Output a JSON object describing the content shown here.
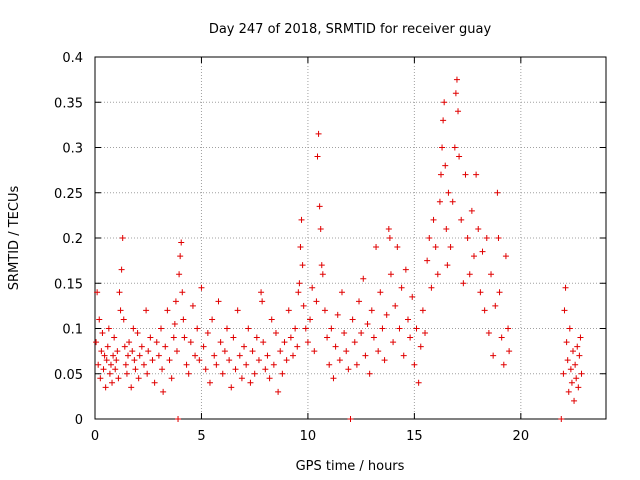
{
  "chart_data": {
    "type": "scatter",
    "title": "Day 247 of 2018, SRMTID for receiver guay",
    "xlabel": "GPS time / hours",
    "ylabel": "SRMTID / TECUs",
    "xlim": [
      0,
      24
    ],
    "ylim": [
      0,
      0.4
    ],
    "x_ticks": [
      0,
      5,
      10,
      15,
      20
    ],
    "x_tick_labels": [
      "0",
      "5",
      "10",
      "15",
      "20"
    ],
    "y_ticks": [
      0,
      0.05,
      0.1,
      0.15,
      0.2,
      0.25,
      0.3,
      0.35,
      0.4
    ],
    "y_tick_labels": [
      "0",
      "0.05",
      "0.1",
      "0.15",
      "0.2",
      "0.25",
      "0.3",
      "0.35",
      "0.4"
    ],
    "grid": true,
    "marker": "+",
    "colors": {
      "points": "#e00000",
      "grid": "#a0a0a0",
      "axes": "#000000"
    },
    "series": [
      {
        "name": "SRMTID",
        "points": [
          [
            0.05,
            0.085
          ],
          [
            0.1,
            0.14
          ],
          [
            0.15,
            0.06
          ],
          [
            0.2,
            0.11
          ],
          [
            0.25,
            0.045
          ],
          [
            0.3,
            0.075
          ],
          [
            0.35,
            0.095
          ],
          [
            0.4,
            0.055
          ],
          [
            0.45,
            0.07
          ],
          [
            0.5,
            0.035
          ],
          [
            0.55,
            0.065
          ],
          [
            0.6,
            0.08
          ],
          [
            0.65,
            0.1
          ],
          [
            0.7,
            0.05
          ],
          [
            0.75,
            0.06
          ],
          [
            0.8,
            0.04
          ],
          [
            0.85,
            0.07
          ],
          [
            0.9,
            0.09
          ],
          [
            0.95,
            0.055
          ],
          [
            1.0,
            0.065
          ],
          [
            1.05,
            0.075
          ],
          [
            1.1,
            0.045
          ],
          [
            1.15,
            0.14
          ],
          [
            1.2,
            0.12
          ],
          [
            1.25,
            0.165
          ],
          [
            1.3,
            0.2
          ],
          [
            1.35,
            0.11
          ],
          [
            1.4,
            0.08
          ],
          [
            1.45,
            0.06
          ],
          [
            1.5,
            0.05
          ],
          [
            1.55,
            0.07
          ],
          [
            1.6,
            0.085
          ],
          [
            1.7,
            0.035
          ],
          [
            1.75,
            0.075
          ],
          [
            1.8,
            0.1
          ],
          [
            1.85,
            0.065
          ],
          [
            1.9,
            0.055
          ],
          [
            2.0,
            0.095
          ],
          [
            2.05,
            0.045
          ],
          [
            2.1,
            0.07
          ],
          [
            2.2,
            0.08
          ],
          [
            2.3,
            0.06
          ],
          [
            2.4,
            0.12
          ],
          [
            2.45,
            0.05
          ],
          [
            2.5,
            0.075
          ],
          [
            2.6,
            0.09
          ],
          [
            2.7,
            0.065
          ],
          [
            2.8,
            0.04
          ],
          [
            2.9,
            0.085
          ],
          [
            3.0,
            0.07
          ],
          [
            3.1,
            0.1
          ],
          [
            3.15,
            0.055
          ],
          [
            3.2,
            0.03
          ],
          [
            3.3,
            0.08
          ],
          [
            3.4,
            0.12
          ],
          [
            3.5,
            0.065
          ],
          [
            3.6,
            0.045
          ],
          [
            3.7,
            0.09
          ],
          [
            3.75,
            0.105
          ],
          [
            3.8,
            0.13
          ],
          [
            3.85,
            0.075
          ],
          [
            3.9,
            0.0
          ],
          [
            3.95,
            0.16
          ],
          [
            4.0,
            0.18
          ],
          [
            4.05,
            0.195
          ],
          [
            4.1,
            0.14
          ],
          [
            4.15,
            0.11
          ],
          [
            4.2,
            0.09
          ],
          [
            4.3,
            0.06
          ],
          [
            4.4,
            0.05
          ],
          [
            4.5,
            0.085
          ],
          [
            4.6,
            0.125
          ],
          [
            4.7,
            0.07
          ],
          [
            4.8,
            0.1
          ],
          [
            4.9,
            0.065
          ],
          [
            5.0,
            0.145
          ],
          [
            5.1,
            0.08
          ],
          [
            5.2,
            0.055
          ],
          [
            5.3,
            0.095
          ],
          [
            5.4,
            0.04
          ],
          [
            5.5,
            0.11
          ],
          [
            5.6,
            0.07
          ],
          [
            5.7,
            0.06
          ],
          [
            5.8,
            0.13
          ],
          [
            5.9,
            0.085
          ],
          [
            6.0,
            0.05
          ],
          [
            6.1,
            0.075
          ],
          [
            6.2,
            0.1
          ],
          [
            6.3,
            0.065
          ],
          [
            6.4,
            0.035
          ],
          [
            6.5,
            0.09
          ],
          [
            6.6,
            0.055
          ],
          [
            6.7,
            0.12
          ],
          [
            6.8,
            0.07
          ],
          [
            6.9,
            0.045
          ],
          [
            7.0,
            0.08
          ],
          [
            7.1,
            0.06
          ],
          [
            7.2,
            0.1
          ],
          [
            7.3,
            0.04
          ],
          [
            7.4,
            0.075
          ],
          [
            7.5,
            0.05
          ],
          [
            7.6,
            0.09
          ],
          [
            7.7,
            0.065
          ],
          [
            7.8,
            0.14
          ],
          [
            7.85,
            0.13
          ],
          [
            7.9,
            0.085
          ],
          [
            8.0,
            0.055
          ],
          [
            8.1,
            0.07
          ],
          [
            8.2,
            0.045
          ],
          [
            8.3,
            0.11
          ],
          [
            8.4,
            0.06
          ],
          [
            8.5,
            0.095
          ],
          [
            8.6,
            0.03
          ],
          [
            8.7,
            0.075
          ],
          [
            8.8,
            0.05
          ],
          [
            8.9,
            0.085
          ],
          [
            9.0,
            0.065
          ],
          [
            9.1,
            0.12
          ],
          [
            9.2,
            0.09
          ],
          [
            9.3,
            0.07
          ],
          [
            9.4,
            0.1
          ],
          [
            9.5,
            0.08
          ],
          [
            9.55,
            0.14
          ],
          [
            9.6,
            0.15
          ],
          [
            9.65,
            0.19
          ],
          [
            9.7,
            0.22
          ],
          [
            9.75,
            0.17
          ],
          [
            9.8,
            0.125
          ],
          [
            9.9,
            0.1
          ],
          [
            10.0,
            0.085
          ],
          [
            10.1,
            0.11
          ],
          [
            10.2,
            0.145
          ],
          [
            10.3,
            0.075
          ],
          [
            10.4,
            0.13
          ],
          [
            10.45,
            0.29
          ],
          [
            10.5,
            0.315
          ],
          [
            10.55,
            0.235
          ],
          [
            10.6,
            0.21
          ],
          [
            10.65,
            0.17
          ],
          [
            10.7,
            0.16
          ],
          [
            10.8,
            0.12
          ],
          [
            10.9,
            0.09
          ],
          [
            11.0,
            0.06
          ],
          [
            11.1,
            0.1
          ],
          [
            11.2,
            0.045
          ],
          [
            11.3,
            0.08
          ],
          [
            11.4,
            0.115
          ],
          [
            11.5,
            0.065
          ],
          [
            11.6,
            0.14
          ],
          [
            11.7,
            0.095
          ],
          [
            11.8,
            0.075
          ],
          [
            11.9,
            0.055
          ],
          [
            12.0,
            0.0
          ],
          [
            12.1,
            0.11
          ],
          [
            12.2,
            0.085
          ],
          [
            12.3,
            0.06
          ],
          [
            12.4,
            0.13
          ],
          [
            12.5,
            0.095
          ],
          [
            12.6,
            0.155
          ],
          [
            12.7,
            0.07
          ],
          [
            12.8,
            0.105
          ],
          [
            12.9,
            0.05
          ],
          [
            13.0,
            0.12
          ],
          [
            13.1,
            0.09
          ],
          [
            13.2,
            0.19
          ],
          [
            13.3,
            0.075
          ],
          [
            13.4,
            0.14
          ],
          [
            13.5,
            0.1
          ],
          [
            13.6,
            0.065
          ],
          [
            13.7,
            0.115
          ],
          [
            13.8,
            0.21
          ],
          [
            13.85,
            0.2
          ],
          [
            13.9,
            0.16
          ],
          [
            14.0,
            0.085
          ],
          [
            14.1,
            0.125
          ],
          [
            14.2,
            0.19
          ],
          [
            14.3,
            0.1
          ],
          [
            14.4,
            0.145
          ],
          [
            14.5,
            0.07
          ],
          [
            14.6,
            0.165
          ],
          [
            14.7,
            0.11
          ],
          [
            14.8,
            0.09
          ],
          [
            14.9,
            0.135
          ],
          [
            15.0,
            0.06
          ],
          [
            15.1,
            0.1
          ],
          [
            15.2,
            0.04
          ],
          [
            15.3,
            0.08
          ],
          [
            15.4,
            0.12
          ],
          [
            15.5,
            0.095
          ],
          [
            15.6,
            0.175
          ],
          [
            15.7,
            0.2
          ],
          [
            15.8,
            0.145
          ],
          [
            15.9,
            0.22
          ],
          [
            16.0,
            0.19
          ],
          [
            16.1,
            0.16
          ],
          [
            16.2,
            0.24
          ],
          [
            16.25,
            0.27
          ],
          [
            16.3,
            0.3
          ],
          [
            16.35,
            0.33
          ],
          [
            16.4,
            0.35
          ],
          [
            16.45,
            0.28
          ],
          [
            16.5,
            0.21
          ],
          [
            16.55,
            0.17
          ],
          [
            16.6,
            0.25
          ],
          [
            16.7,
            0.19
          ],
          [
            16.8,
            0.24
          ],
          [
            16.9,
            0.3
          ],
          [
            16.95,
            0.36
          ],
          [
            17.0,
            0.375
          ],
          [
            17.05,
            0.34
          ],
          [
            17.1,
            0.29
          ],
          [
            17.2,
            0.22
          ],
          [
            17.3,
            0.15
          ],
          [
            17.4,
            0.27
          ],
          [
            17.5,
            0.2
          ],
          [
            17.6,
            0.16
          ],
          [
            17.7,
            0.23
          ],
          [
            17.8,
            0.18
          ],
          [
            17.9,
            0.27
          ],
          [
            18.0,
            0.21
          ],
          [
            18.1,
            0.14
          ],
          [
            18.2,
            0.185
          ],
          [
            18.3,
            0.12
          ],
          [
            18.4,
            0.2
          ],
          [
            18.5,
            0.095
          ],
          [
            18.6,
            0.16
          ],
          [
            18.7,
            0.07
          ],
          [
            18.8,
            0.125
          ],
          [
            18.9,
            0.25
          ],
          [
            18.95,
            0.2
          ],
          [
            19.0,
            0.14
          ],
          [
            19.1,
            0.09
          ],
          [
            19.2,
            0.06
          ],
          [
            19.3,
            0.18
          ],
          [
            19.4,
            0.1
          ],
          [
            19.45,
            0.075
          ],
          [
            21.9,
            0.0
          ],
          [
            22.0,
            0.05
          ],
          [
            22.05,
            0.12
          ],
          [
            22.1,
            0.145
          ],
          [
            22.15,
            0.085
          ],
          [
            22.2,
            0.065
          ],
          [
            22.25,
            0.03
          ],
          [
            22.3,
            0.1
          ],
          [
            22.35,
            0.055
          ],
          [
            22.4,
            0.04
          ],
          [
            22.45,
            0.075
          ],
          [
            22.5,
            0.02
          ],
          [
            22.55,
            0.06
          ],
          [
            22.6,
            0.045
          ],
          [
            22.65,
            0.08
          ],
          [
            22.7,
            0.035
          ],
          [
            22.75,
            0.07
          ],
          [
            22.8,
            0.09
          ],
          [
            22.85,
            0.05
          ]
        ]
      }
    ]
  }
}
